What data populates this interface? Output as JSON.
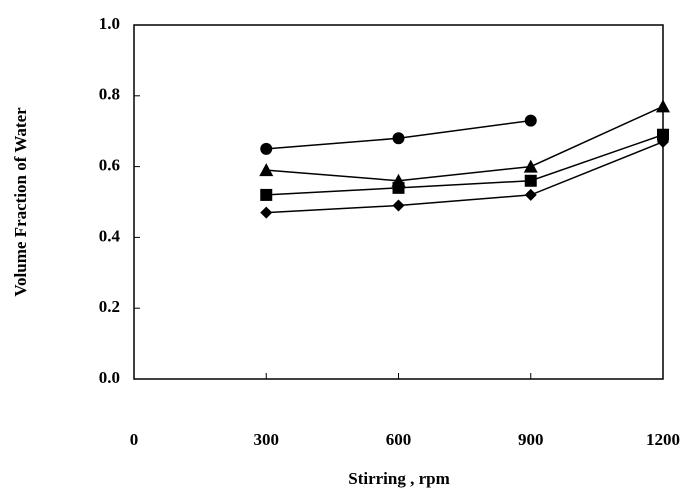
{
  "chart_data": {
    "type": "line",
    "x_label": "Stirring , rpm",
    "y_label": "Volume Fraction of Water",
    "x": [
      300,
      600,
      900,
      1200
    ],
    "series": [
      {
        "marker": "circle",
        "color": "#000000",
        "values": [
          0.65,
          0.68,
          0.73,
          null
        ]
      },
      {
        "marker": "triangle",
        "color": "#000000",
        "values": [
          0.59,
          0.56,
          0.6,
          0.77
        ]
      },
      {
        "marker": "square",
        "color": "#000000",
        "values": [
          0.52,
          0.54,
          0.56,
          0.69
        ]
      },
      {
        "marker": "diamond",
        "color": "#000000",
        "values": [
          0.47,
          0.49,
          0.52,
          0.67
        ]
      }
    ],
    "xlim": [
      0,
      1200
    ],
    "ylim": [
      0,
      1
    ],
    "xticks": [
      0,
      300,
      600,
      900,
      1200
    ],
    "yticks": [
      {
        "value": 0,
        "label": "0.0"
      },
      {
        "value": 0.2,
        "label": "0.2"
      },
      {
        "value": 0.4,
        "label": "0.4"
      },
      {
        "value": 0.6,
        "label": "0.6"
      },
      {
        "value": 0.8,
        "label": "0.8"
      },
      {
        "value": 1,
        "label": "1.0"
      }
    ],
    "grid": false
  }
}
